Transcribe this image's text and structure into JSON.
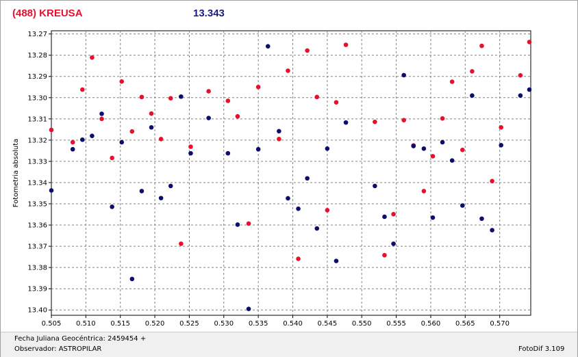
{
  "header": {
    "object_name": "(488) KREUSA",
    "magnitude": "13.343",
    "object_color": "#e8112d",
    "magnitude_color": "#1a1a8c"
  },
  "footer": {
    "julian_date": "Fecha Juliana Geocéntrica: 2459454 +",
    "observer": "Observador: ASTROPILAR",
    "software": "FotoDif 3.109"
  },
  "chart_data": {
    "type": "scatter",
    "ylabel": "Fotometria absoluta",
    "xlim": [
      0.505,
      0.5745
    ],
    "ylim": [
      13.4025,
      13.2685
    ],
    "y_inverted": true,
    "grid": true,
    "x_ticks": [
      "0.505",
      "0.510",
      "0.515",
      "0.520",
      "0.525",
      "0.530",
      "0.535",
      "0.540",
      "0.545",
      "0.550",
      "0.555",
      "0.560",
      "0.565",
      "0.570"
    ],
    "y_ticks": [
      "13.27",
      "13.28",
      "13.29",
      "13.30",
      "13.31",
      "13.32",
      "13.33",
      "13.34",
      "13.35",
      "13.36",
      "13.37",
      "13.38",
      "13.39",
      "13.40"
    ],
    "series": [
      {
        "color": "#e8112d",
        "points": [
          [
            0.505,
            13.3152
          ],
          [
            0.5081,
            13.321
          ],
          [
            0.5095,
            13.2962
          ],
          [
            0.5109,
            13.2811
          ],
          [
            0.5123,
            13.31
          ],
          [
            0.5138,
            13.3284
          ],
          [
            0.5152,
            13.2924
          ],
          [
            0.5167,
            13.3159
          ],
          [
            0.5181,
            13.2997
          ],
          [
            0.5195,
            13.3075
          ],
          [
            0.5209,
            13.3195
          ],
          [
            0.5223,
            13.3003
          ],
          [
            0.5238,
            13.3688
          ],
          [
            0.5252,
            13.3231
          ],
          [
            0.5278,
            13.297
          ],
          [
            0.5306,
            13.3015
          ],
          [
            0.532,
            13.3088
          ],
          [
            0.5336,
            13.3593
          ],
          [
            0.535,
            13.295
          ],
          [
            0.538,
            13.3195
          ],
          [
            0.5393,
            13.2873
          ],
          [
            0.5408,
            13.3759
          ],
          [
            0.5421,
            13.2778
          ],
          [
            0.5435,
            13.2997
          ],
          [
            0.545,
            13.353
          ],
          [
            0.5463,
            13.3022
          ],
          [
            0.5477,
            13.2751
          ],
          [
            0.5519,
            13.3114
          ],
          [
            0.5533,
            13.3742
          ],
          [
            0.5546,
            13.3549
          ],
          [
            0.5561,
            13.3106
          ],
          [
            0.5575,
            13.3225
          ],
          [
            0.559,
            13.344
          ],
          [
            0.5603,
            13.3276
          ],
          [
            0.5617,
            13.3098
          ],
          [
            0.5631,
            13.2925
          ],
          [
            0.5646,
            13.3246
          ],
          [
            0.566,
            13.2876
          ],
          [
            0.5674,
            13.2756
          ],
          [
            0.5689,
            13.3393
          ],
          [
            0.5702,
            13.314
          ],
          [
            0.573,
            13.2895
          ],
          [
            0.5743,
            13.2738
          ]
        ]
      },
      {
        "color": "#0d0d6b",
        "points": [
          [
            0.505,
            13.3437
          ],
          [
            0.5081,
            13.3243
          ],
          [
            0.5095,
            13.3198
          ],
          [
            0.5109,
            13.318
          ],
          [
            0.5123,
            13.3076
          ],
          [
            0.5138,
            13.3514
          ],
          [
            0.5152,
            13.321
          ],
          [
            0.5167,
            13.3854
          ],
          [
            0.5181,
            13.344
          ],
          [
            0.5195,
            13.314
          ],
          [
            0.5209,
            13.3473
          ],
          [
            0.5223,
            13.3416
          ],
          [
            0.5238,
            13.2995
          ],
          [
            0.5252,
            13.3262
          ],
          [
            0.5278,
            13.3096
          ],
          [
            0.5306,
            13.3262
          ],
          [
            0.532,
            13.3598
          ],
          [
            0.5336,
            13.3995
          ],
          [
            0.535,
            13.3243
          ],
          [
            0.5364,
            13.2758
          ],
          [
            0.538,
            13.3158
          ],
          [
            0.5393,
            13.3474
          ],
          [
            0.5408,
            13.3523
          ],
          [
            0.5421,
            13.338
          ],
          [
            0.5435,
            13.3616
          ],
          [
            0.545,
            13.324
          ],
          [
            0.5463,
            13.3769
          ],
          [
            0.5477,
            13.3117
          ],
          [
            0.5519,
            13.3416
          ],
          [
            0.5533,
            13.3561
          ],
          [
            0.5546,
            13.3688
          ],
          [
            0.5561,
            13.2894
          ],
          [
            0.5575,
            13.3228
          ],
          [
            0.559,
            13.324
          ],
          [
            0.5603,
            13.3565
          ],
          [
            0.5617,
            13.321
          ],
          [
            0.5631,
            13.3296
          ],
          [
            0.5646,
            13.3508
          ],
          [
            0.566,
            13.299
          ],
          [
            0.5674,
            13.357
          ],
          [
            0.5689,
            13.3624
          ],
          [
            0.5702,
            13.3224
          ],
          [
            0.573,
            13.299
          ],
          [
            0.5743,
            13.2962
          ]
        ]
      }
    ]
  }
}
